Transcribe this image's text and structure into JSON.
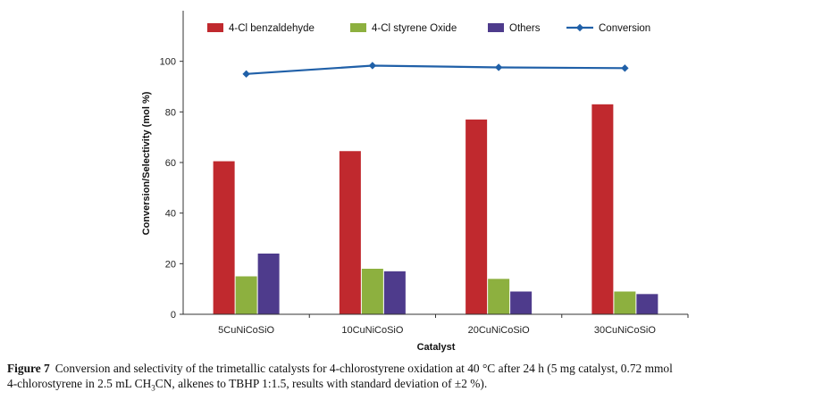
{
  "chart_data": {
    "type": "bar",
    "title": "",
    "xlabel": "Catalyst",
    "ylabel": "Conversion/Selectivity  (mol %)",
    "ylim": [
      0,
      120
    ],
    "yticks": [
      0,
      20,
      40,
      60,
      80,
      100
    ],
    "categories": [
      "5CuNiCoSiO",
      "10CuNiCoSiO",
      "20CuNiCoSiO",
      "30CuNiCoSiO"
    ],
    "series": [
      {
        "name": "4-Cl benzaldehyde",
        "kind": "bar",
        "color": "#c0292e",
        "values": [
          60.5,
          64.5,
          77,
          83
        ]
      },
      {
        "name": "4-Cl styrene Oxide",
        "kind": "bar",
        "color": "#8db03f",
        "values": [
          15,
          18,
          14,
          9
        ]
      },
      {
        "name": "Others",
        "kind": "bar",
        "color": "#4e3b8c",
        "values": [
          24,
          17,
          9,
          8
        ]
      },
      {
        "name": "Conversion",
        "kind": "line",
        "color": "#2060a8",
        "values": [
          95,
          98.3,
          97.6,
          97.3
        ]
      }
    ],
    "legend_position": "top"
  },
  "caption": {
    "label": "Figure 7",
    "line1": "Conversion and selectivity of the trimetallic catalysts for 4-chlorostyrene oxidation at 40 °C after 24 h (5 mg catalyst, 0.72 mmol",
    "line2_pre": "4-chlorostyrene in 2.5 mL CH",
    "line2_sub1": "3",
    "line2_mid": "CN, alkenes to TBHP 1:1.5, results with standard deviation of ±2 %)."
  }
}
